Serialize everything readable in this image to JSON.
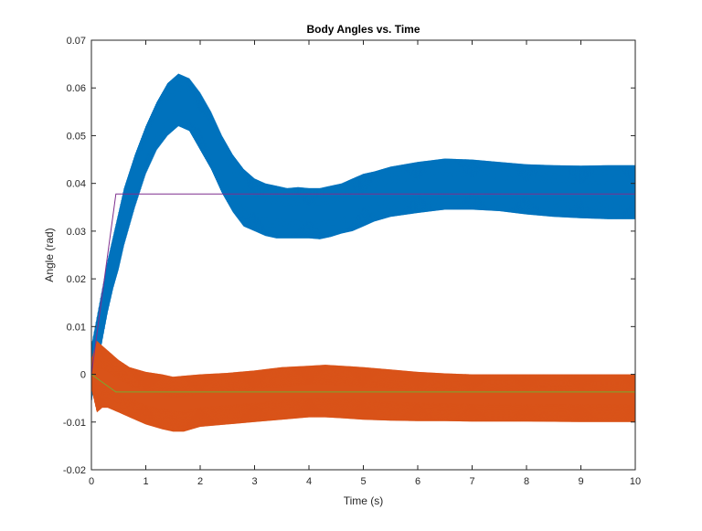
{
  "figure": {
    "background": "#ffffff"
  },
  "chart_data": {
    "type": "line",
    "title": "Body Angles vs. Time",
    "xlabel": "Time (s)",
    "ylabel": "Angle (rad)",
    "xlim": [
      0,
      10
    ],
    "ylim": [
      -0.02,
      0.07
    ],
    "x_ticks": [
      "0",
      "1",
      "2",
      "3",
      "4",
      "5",
      "6",
      "7",
      "8",
      "9",
      "10"
    ],
    "y_ticks": [
      "-0.02",
      "-0.01",
      "0",
      "0.01",
      "0.02",
      "0.03",
      "0.04",
      "0.05",
      "0.06",
      "0.07"
    ],
    "grid": false,
    "legend": null,
    "series": [
      {
        "color": "#0072BD",
        "style": "oscillating-band",
        "x": [
          0,
          0.1,
          0.2,
          0.3,
          0.4,
          0.5,
          0.6,
          0.8,
          1.0,
          1.2,
          1.4,
          1.6,
          1.8,
          2.0,
          2.2,
          2.4,
          2.6,
          2.8,
          3.0,
          3.2,
          3.4,
          3.6,
          3.8,
          4.0,
          4.2,
          4.4,
          4.6,
          4.8,
          5.0,
          5.2,
          5.5,
          6.0,
          6.5,
          7.0,
          7.5,
          8.0,
          8.5,
          9.0,
          9.5,
          10.0
        ],
        "upper": [
          0.006,
          0.012,
          0.018,
          0.024,
          0.029,
          0.034,
          0.039,
          0.046,
          0.052,
          0.057,
          0.061,
          0.063,
          0.062,
          0.059,
          0.055,
          0.05,
          0.046,
          0.043,
          0.041,
          0.04,
          0.0395,
          0.039,
          0.0392,
          0.039,
          0.039,
          0.0395,
          0.04,
          0.041,
          0.042,
          0.0425,
          0.0435,
          0.0445,
          0.0452,
          0.045,
          0.0445,
          0.044,
          0.0438,
          0.0437,
          0.0438,
          0.0438
        ],
        "lower": [
          -0.006,
          0.001,
          0.007,
          0.013,
          0.018,
          0.022,
          0.027,
          0.035,
          0.042,
          0.047,
          0.05,
          0.052,
          0.051,
          0.047,
          0.043,
          0.038,
          0.034,
          0.031,
          0.03,
          0.029,
          0.0285,
          0.0285,
          0.0285,
          0.0285,
          0.0283,
          0.0288,
          0.0295,
          0.03,
          0.031,
          0.032,
          0.033,
          0.0338,
          0.0345,
          0.0345,
          0.0342,
          0.0335,
          0.033,
          0.0327,
          0.0325,
          0.0325
        ]
      },
      {
        "color": "#D95319",
        "style": "oscillating-band",
        "x": [
          0,
          0.1,
          0.2,
          0.3,
          0.5,
          0.7,
          1.0,
          1.3,
          1.5,
          1.7,
          2.0,
          2.5,
          3.0,
          3.5,
          4.0,
          4.3,
          4.6,
          5.0,
          5.5,
          6.0,
          6.5,
          7.0,
          7.5,
          8.0,
          9.0,
          10.0
        ],
        "upper": [
          0.003,
          0.007,
          0.006,
          0.005,
          0.003,
          0.0015,
          0.0005,
          0.0,
          -0.0005,
          -0.0003,
          0.0,
          0.0003,
          0.0008,
          0.0015,
          0.0018,
          0.002,
          0.0018,
          0.0015,
          0.001,
          0.0005,
          0.0002,
          0.0,
          0.0,
          0.0,
          0.0,
          0.0
        ],
        "lower": [
          -0.003,
          -0.008,
          -0.007,
          -0.007,
          -0.008,
          -0.009,
          -0.0105,
          -0.0115,
          -0.012,
          -0.012,
          -0.011,
          -0.0105,
          -0.01,
          -0.0095,
          -0.009,
          -0.009,
          -0.0092,
          -0.0095,
          -0.0097,
          -0.0098,
          -0.0098,
          -0.0099,
          -0.0099,
          -0.0099,
          -0.01,
          -0.01
        ]
      },
      {
        "color": "#7E2F8E",
        "style": "line",
        "x": [
          0,
          0.45,
          10
        ],
        "y": [
          0,
          0.0378,
          0.0378
        ]
      },
      {
        "color": "#77AC30",
        "style": "line",
        "x": [
          0,
          0.45,
          10
        ],
        "y": [
          0,
          -0.0037,
          -0.0037
        ]
      }
    ]
  }
}
